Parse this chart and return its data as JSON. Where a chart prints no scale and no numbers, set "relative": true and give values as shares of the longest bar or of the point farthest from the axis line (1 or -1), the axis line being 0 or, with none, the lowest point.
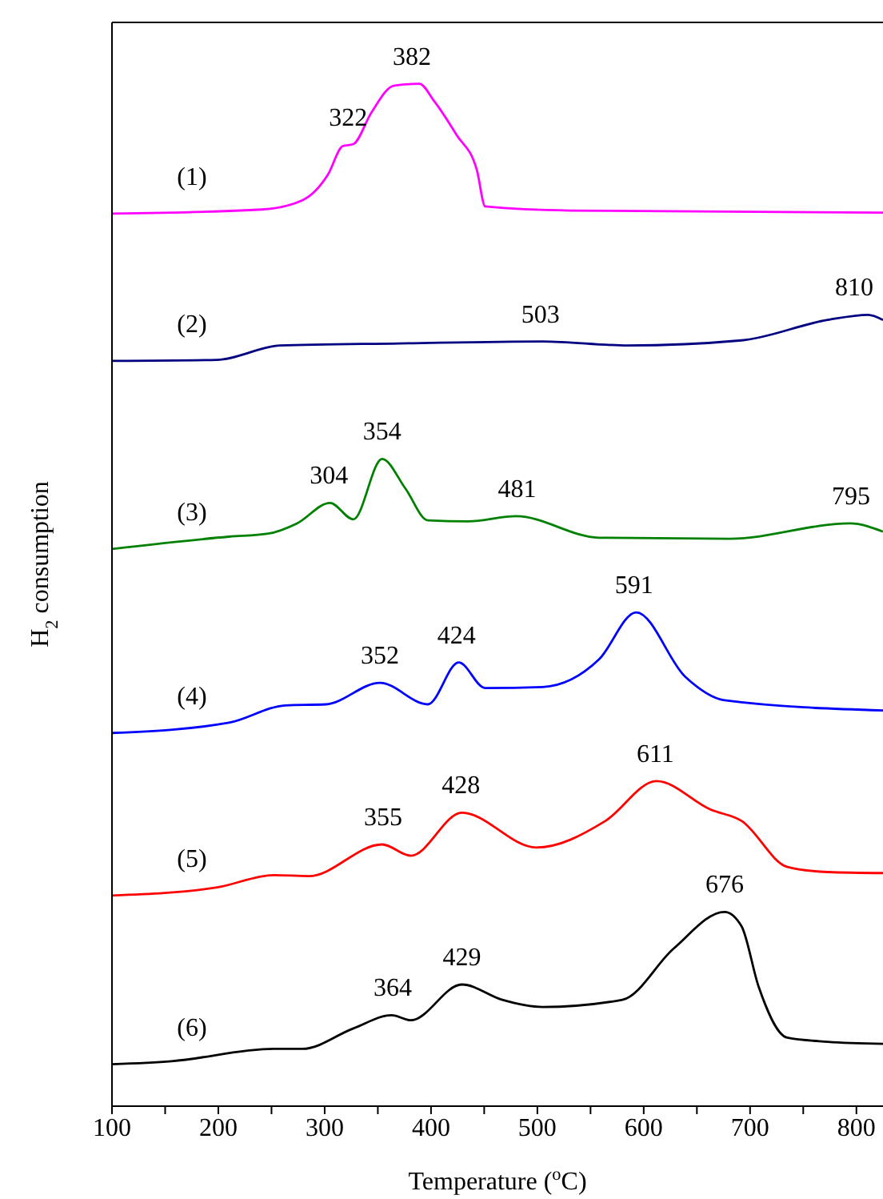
{
  "chart_data": {
    "type": "line",
    "relative": true,
    "xlabel": "Temperature ($^{o}$C)",
    "ylabel": "H$_{2}$ consumption",
    "xlim": [
      100,
      825
    ],
    "xticks": [
      100,
      {
        "value": 150,
        "label": null
      },
      200,
      {
        "value": 250,
        "label": null
      },
      300,
      {
        "value": 350,
        "label": null
      },
      400,
      {
        "value": 450,
        "label": null
      },
      500,
      {
        "value": 550,
        "label": null
      },
      600,
      {
        "value": 650,
        "label": null
      },
      700,
      {
        "value": 750,
        "label": null
      },
      800
    ],
    "series": [
      {
        "name": "(1)",
        "color": "#ff00ff",
        "x": [
          100,
          241,
          279,
          303,
          317,
          327,
          344,
          365,
          389,
          403,
          424,
          443,
          451,
          531,
          825
        ],
        "values": [
          0.873,
          0.877,
          0.886,
          0.911,
          0.939,
          0.941,
          0.972,
          0.998,
          1.0,
          0.983,
          0.95,
          0.916,
          0.88,
          0.876,
          0.874
        ]
      },
      {
        "name": "(2)",
        "color": "#000080",
        "x": [
          100,
          199,
          258,
          370,
          505,
          585,
          692,
          773,
          811,
          825
        ],
        "values": [
          0.729,
          0.73,
          0.744,
          0.746,
          0.748,
          0.744,
          0.749,
          0.769,
          0.774,
          0.769
        ]
      },
      {
        "name": "(3)",
        "color": "#008000",
        "x": [
          100,
          210,
          247,
          274,
          305,
          327,
          354,
          376,
          397,
          435,
          480,
          558,
          681,
          794,
          825
        ],
        "values": [
          0.545,
          0.557,
          0.56,
          0.57,
          0.59,
          0.574,
          0.633,
          0.604,
          0.573,
          0.572,
          0.577,
          0.556,
          0.555,
          0.57,
          0.562
        ]
      },
      {
        "name": "(4)",
        "color": "#0000ff",
        "x": [
          100,
          210,
          263,
          301,
          352,
          397,
          426,
          451,
          505,
          558,
          593,
          639,
          676,
          825
        ],
        "values": [
          0.365,
          0.375,
          0.392,
          0.393,
          0.414,
          0.393,
          0.434,
          0.409,
          0.41,
          0.437,
          0.483,
          0.42,
          0.397,
          0.387
        ]
      },
      {
        "name": "(5)",
        "color": "#ff0000",
        "x": [
          100,
          199,
          252,
          285,
          354,
          381,
          429,
          499,
          564,
          612,
          663,
          692,
          735,
          773,
          825
        ],
        "values": [
          0.206,
          0.214,
          0.226,
          0.225,
          0.256,
          0.245,
          0.287,
          0.253,
          0.279,
          0.318,
          0.29,
          0.279,
          0.234,
          0.229,
          0.228
        ]
      },
      {
        "name": "(6)",
        "color": "#000000",
        "x": [
          100,
          156,
          252,
          279,
          327,
          363,
          381,
          429,
          467,
          505,
          580,
          628,
          676,
          692,
          708,
          735,
          773,
          825
        ],
        "values": [
          0.041,
          0.044,
          0.056,
          0.056,
          0.076,
          0.089,
          0.084,
          0.119,
          0.104,
          0.097,
          0.104,
          0.154,
          0.19,
          0.176,
          0.117,
          0.067,
          0.063,
          0.061
        ]
      }
    ],
    "annotations": [
      {
        "text": "322",
        "x": 322,
        "y": 0.94
      },
      {
        "text": "382",
        "x": 382,
        "y": 1.0
      },
      {
        "text": "503",
        "x": 503,
        "y": 0.748
      },
      {
        "text": "810",
        "x": 810,
        "y": 0.774
      },
      {
        "text": "304",
        "x": 304,
        "y": 0.59
      },
      {
        "text": "354",
        "x": 354,
        "y": 0.633
      },
      {
        "text": "481",
        "x": 481,
        "y": 0.577
      },
      {
        "text": "795",
        "x": 795,
        "y": 0.57
      },
      {
        "text": "352",
        "x": 352,
        "y": 0.414
      },
      {
        "text": "424",
        "x": 424,
        "y": 0.434
      },
      {
        "text": "591",
        "x": 591,
        "y": 0.483
      },
      {
        "text": "355",
        "x": 355,
        "y": 0.256
      },
      {
        "text": "428",
        "x": 428,
        "y": 0.287
      },
      {
        "text": "611",
        "x": 611,
        "y": 0.318
      },
      {
        "text": "364",
        "x": 364,
        "y": 0.089
      },
      {
        "text": "429",
        "x": 429,
        "y": 0.119
      },
      {
        "text": "676",
        "x": 676,
        "y": 0.19
      }
    ]
  }
}
